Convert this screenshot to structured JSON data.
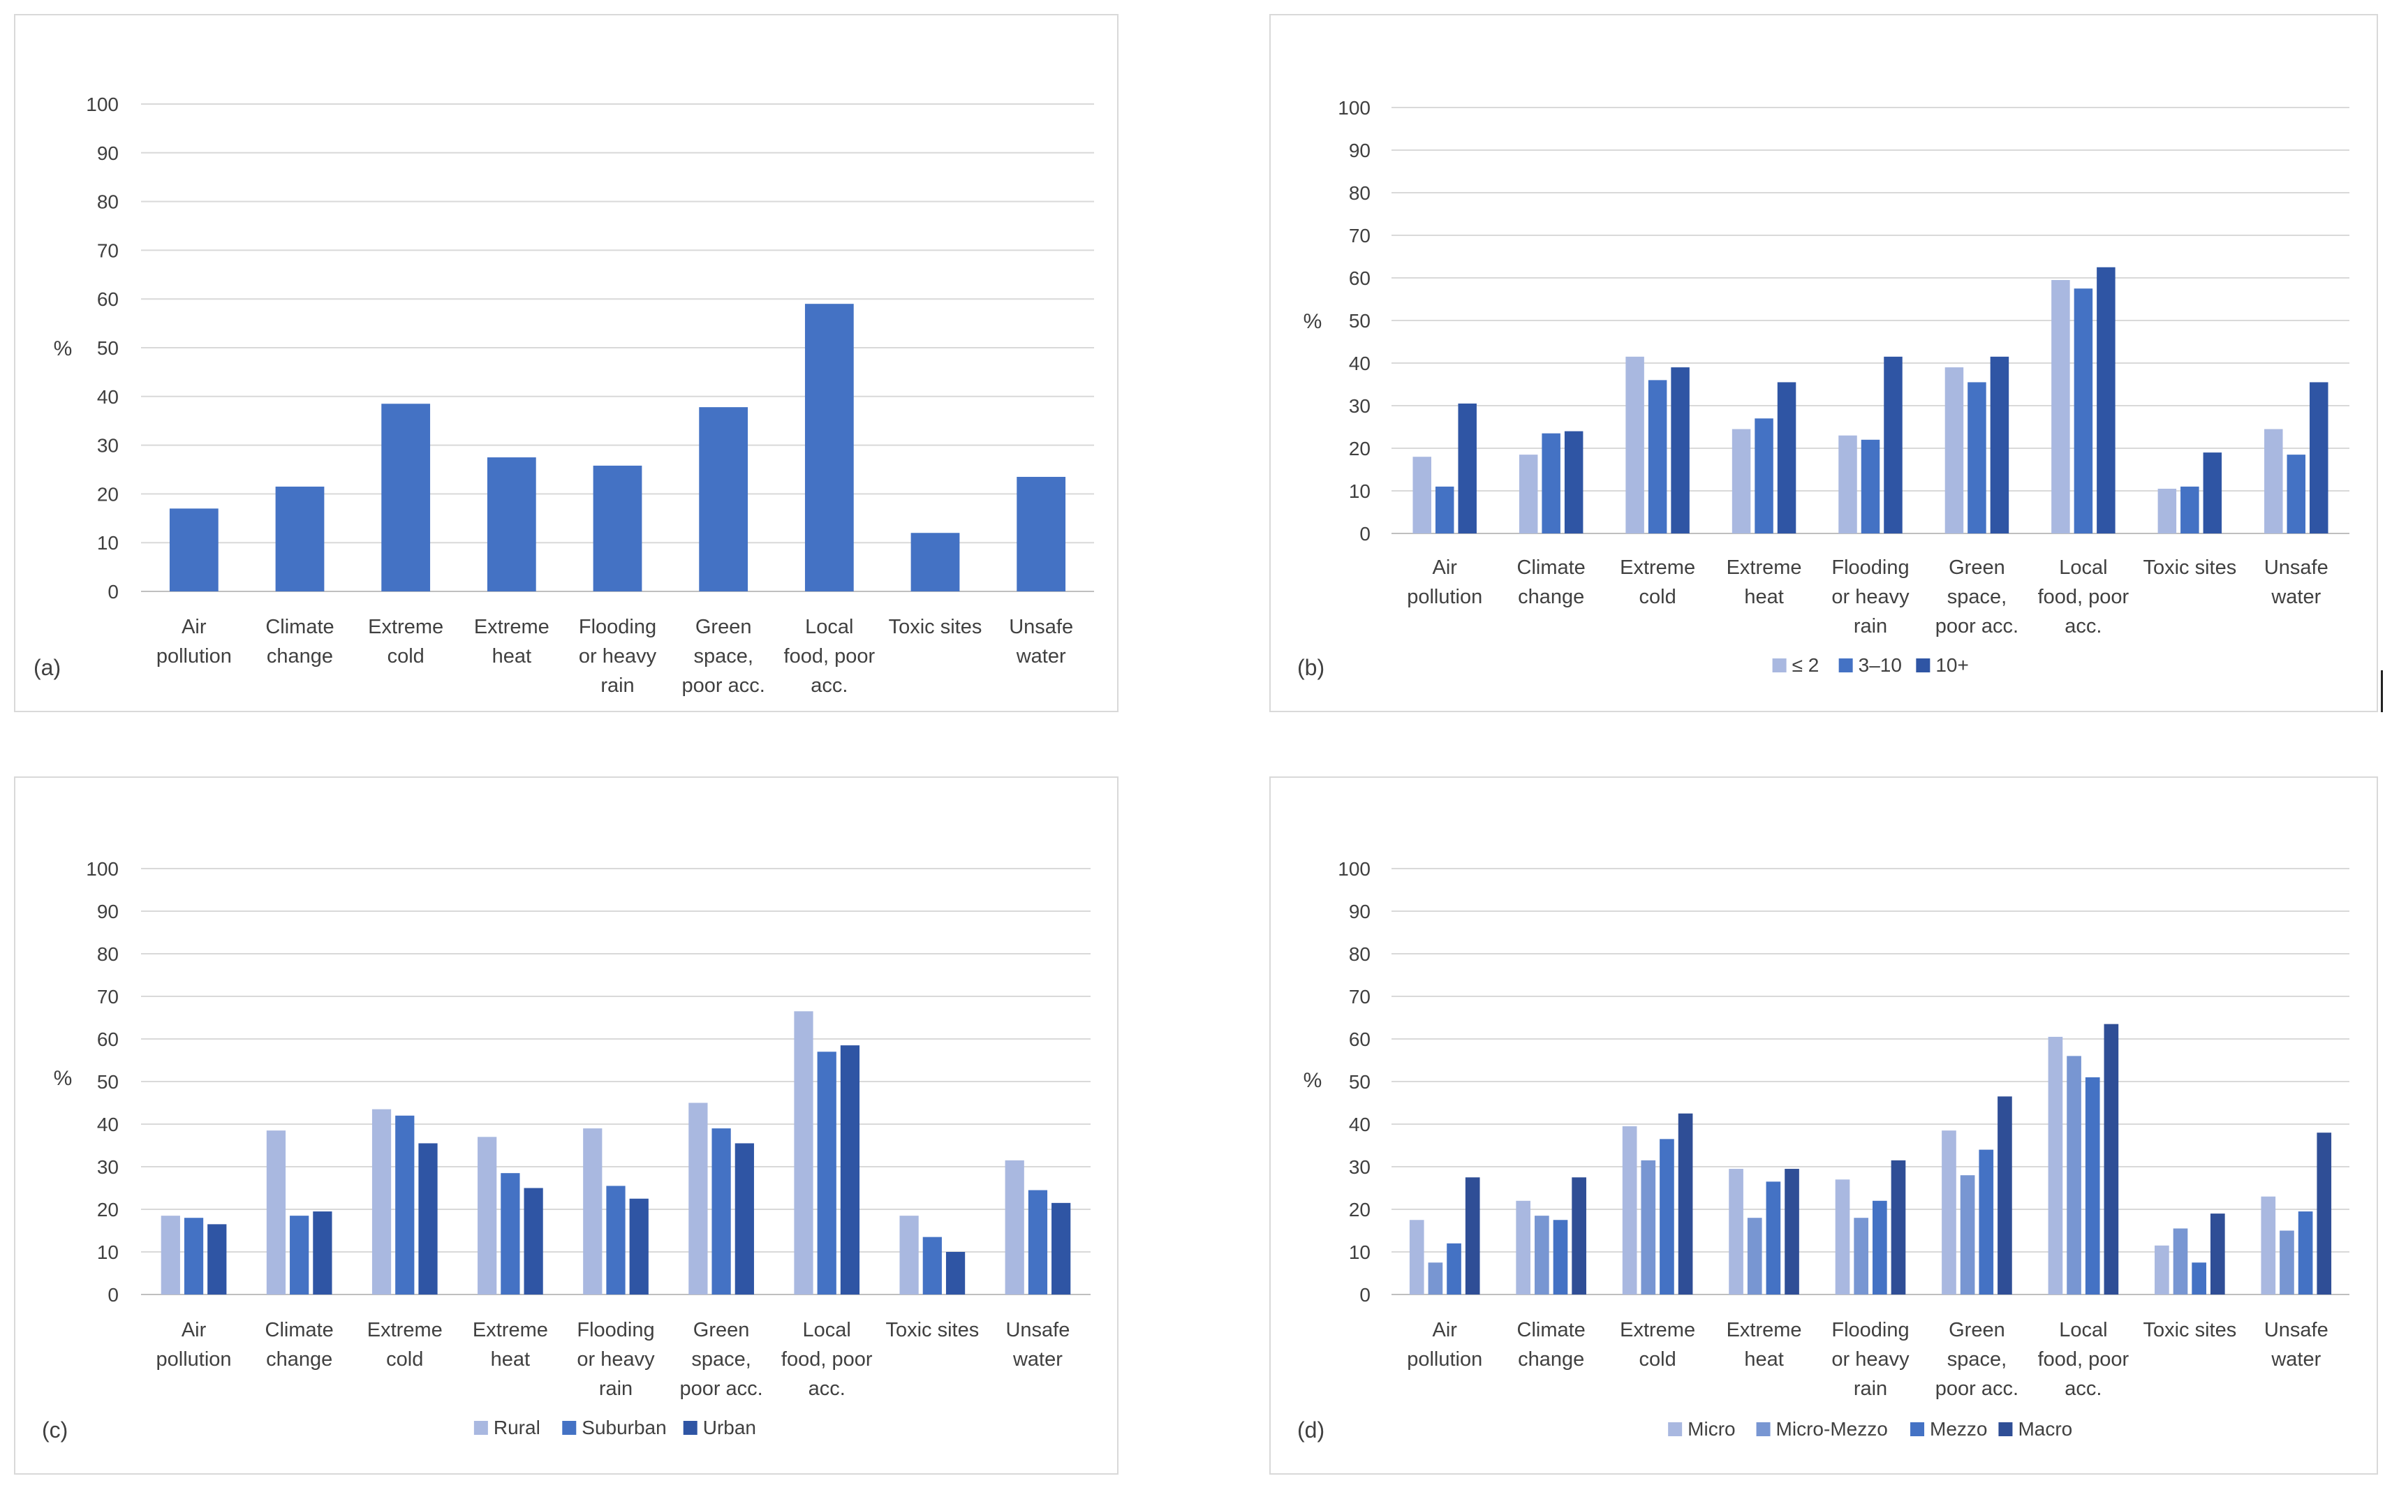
{
  "colors": {
    "grid": "#d9d9d9",
    "text": "#404040",
    "single": "#4472C4",
    "shade_1": "#A9B8E0",
    "shade_2": "#4472C4",
    "shade_3": "#2F55A4",
    "shade_4": "#1F3F88",
    "micro": "#A9B8E0",
    "micro_mezzo": "#7896D2",
    "mezzo": "#4472C4",
    "macro": "#2F4E96"
  },
  "chart_data": [
    {
      "id": "a",
      "panel_label": "(a)",
      "type": "bar",
      "ylabel": "%",
      "ylim": [
        0,
        100
      ],
      "yticks": [
        "0",
        "10",
        "20",
        "30",
        "40",
        "50",
        "60",
        "70",
        "80",
        "90",
        "100"
      ],
      "grid": true,
      "categories": [
        [
          "Air",
          "pollution"
        ],
        [
          "Climate",
          "change"
        ],
        [
          "Extreme",
          "cold"
        ],
        [
          "Extreme",
          "heat"
        ],
        [
          "Flooding",
          "or heavy",
          "rain"
        ],
        [
          "Green",
          "space,",
          "poor acc."
        ],
        [
          "Local",
          "food, poor",
          "acc."
        ],
        [
          "Toxic sites"
        ],
        [
          "Unsafe",
          "water"
        ]
      ],
      "series": [
        {
          "name": "",
          "color_key": "single",
          "values": [
            17,
            21.5,
            38.5,
            27.5,
            25.8,
            37.8,
            59,
            12,
            23.5
          ]
        }
      ],
      "legend": null
    },
    {
      "id": "b",
      "panel_label": "(b)",
      "type": "bar",
      "ylabel": "%",
      "ylim": [
        0,
        100
      ],
      "yticks": [
        "0",
        "10",
        "20",
        "30",
        "40",
        "50",
        "60",
        "70",
        "80",
        "90",
        "100"
      ],
      "grid": true,
      "categories": [
        [
          "Air",
          "pollution"
        ],
        [
          "Climate",
          "change"
        ],
        [
          "Extreme",
          "cold"
        ],
        [
          "Extreme",
          "heat"
        ],
        [
          "Flooding",
          "or heavy",
          "rain"
        ],
        [
          "Green",
          "space,",
          "poor acc."
        ],
        [
          "Local",
          "food, poor",
          "acc."
        ],
        [
          "Toxic sites"
        ],
        [
          "Unsafe",
          "water"
        ]
      ],
      "series": [
        {
          "name": "≤ 2",
          "color_key": "shade_1",
          "values": [
            18,
            18.5,
            41.5,
            24.5,
            23,
            39,
            59.5,
            10.5,
            24.5
          ]
        },
        {
          "name": "3–10",
          "color_key": "shade_2",
          "values": [
            11,
            23.5,
            36,
            27,
            22,
            35.5,
            57.5,
            11,
            18.5
          ]
        },
        {
          "name": "10+",
          "color_key": "shade_3",
          "values": [
            30.5,
            24,
            39,
            35.5,
            41.5,
            41.5,
            62.5,
            19,
            35.5
          ]
        }
      ],
      "legend": "bottom-center"
    },
    {
      "id": "c",
      "panel_label": "(c)",
      "type": "bar",
      "ylabel": "%",
      "ylim": [
        0,
        100
      ],
      "yticks": [
        "0",
        "10",
        "20",
        "30",
        "40",
        "50",
        "60",
        "70",
        "80",
        "90",
        "100"
      ],
      "grid": true,
      "categories": [
        [
          "Air",
          "pollution"
        ],
        [
          "Climate",
          "change"
        ],
        [
          "Extreme",
          "cold"
        ],
        [
          "Extreme",
          "heat"
        ],
        [
          "Flooding",
          "or heavy",
          "rain"
        ],
        [
          "Green",
          "space,",
          "poor acc."
        ],
        [
          "Local",
          "food, poor",
          "acc."
        ],
        [
          "Toxic sites"
        ],
        [
          "Unsafe",
          "water"
        ]
      ],
      "series": [
        {
          "name": "Rural",
          "color_key": "shade_1",
          "values": [
            18.5,
            38.5,
            43.5,
            37,
            39,
            45,
            66.5,
            18.5,
            31.5
          ]
        },
        {
          "name": "Suburban",
          "color_key": "shade_2",
          "values": [
            18,
            18.5,
            42,
            28.5,
            25.5,
            39,
            57,
            13.5,
            24.5
          ]
        },
        {
          "name": "Urban",
          "color_key": "shade_3",
          "values": [
            16.5,
            19.5,
            35.5,
            25,
            22.5,
            35.5,
            58.5,
            10,
            21.5
          ]
        }
      ],
      "legend": "bottom-center"
    },
    {
      "id": "d",
      "panel_label": "(d)",
      "type": "bar",
      "ylabel": "%",
      "ylim": [
        0,
        100
      ],
      "yticks": [
        "0",
        "10",
        "20",
        "30",
        "40",
        "50",
        "60",
        "70",
        "80",
        "90",
        "100"
      ],
      "grid": true,
      "categories": [
        [
          "Air",
          "pollution"
        ],
        [
          "Climate",
          "change"
        ],
        [
          "Extreme",
          "cold"
        ],
        [
          "Extreme",
          "heat"
        ],
        [
          "Flooding",
          "or heavy",
          "rain"
        ],
        [
          "Green",
          "space,",
          "poor acc."
        ],
        [
          "Local",
          "food, poor",
          "acc."
        ],
        [
          "Toxic sites"
        ],
        [
          "Unsafe",
          "water"
        ]
      ],
      "series": [
        {
          "name": "Micro",
          "color_key": "micro",
          "values": [
            17.5,
            22,
            39.5,
            29.5,
            27,
            38.5,
            60.5,
            11.5,
            23
          ]
        },
        {
          "name": "Micro-Mezzo",
          "color_key": "micro_mezzo",
          "values": [
            7.5,
            18.5,
            31.5,
            18,
            18,
            28,
            56,
            15.5,
            15
          ]
        },
        {
          "name": "Mezzo",
          "color_key": "mezzo",
          "values": [
            12,
            17.5,
            36.5,
            26.5,
            22,
            34,
            51,
            7.5,
            19.5
          ]
        },
        {
          "name": "Macro",
          "color_key": "macro",
          "values": [
            27.5,
            27.5,
            42.5,
            29.5,
            31.5,
            46.5,
            63.5,
            19,
            38
          ]
        }
      ],
      "legend": "bottom-center"
    }
  ]
}
